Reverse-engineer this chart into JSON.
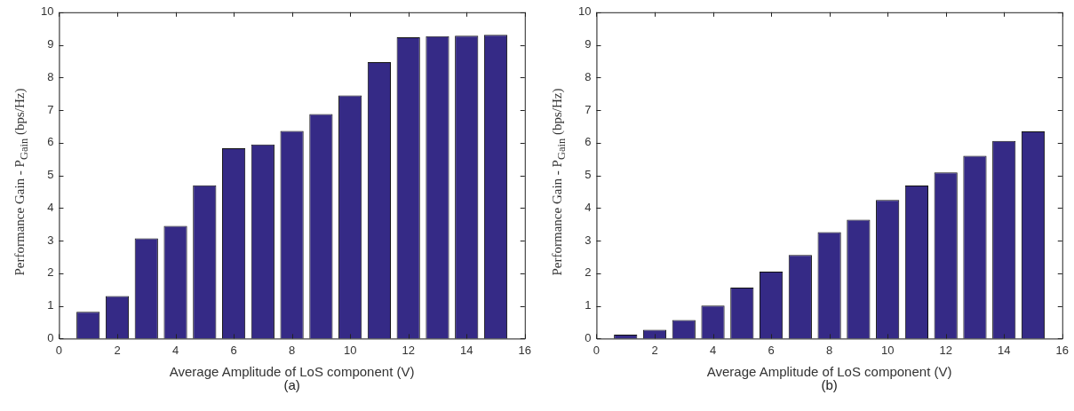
{
  "chart_data": [
    {
      "type": "bar",
      "xlabel": "Average Amplitude of LoS component (V)",
      "ylabel": "Performance Gain - P$_{Gain}$ (bps/Hz)",
      "annotations": [
        "(a)"
      ],
      "x": [
        1,
        2,
        3,
        4,
        5,
        6,
        7,
        8,
        9,
        10,
        11,
        12,
        13,
        14,
        15
      ],
      "values": [
        0.82,
        1.3,
        3.07,
        3.45,
        4.7,
        5.83,
        5.95,
        6.36,
        6.88,
        7.45,
        8.47,
        9.23,
        9.27,
        9.28,
        9.31
      ],
      "color": "#352a86",
      "xlim": [
        0,
        16
      ],
      "xticks": [
        0,
        2,
        4,
        6,
        8,
        10,
        12,
        14,
        16
      ],
      "ylim": [
        0,
        10
      ],
      "yticks": [
        0,
        1,
        2,
        3,
        4,
        5,
        6,
        7,
        8,
        9,
        10
      ],
      "grid": false,
      "legend": false
    },
    {
      "type": "bar",
      "xlabel": "Average Amplitude of LoS component (V)",
      "ylabel": "Performance Gain - P$_{Gain}$ (bps/Hz)",
      "annotations": [
        "(b)"
      ],
      "x": [
        1,
        2,
        3,
        4,
        5,
        6,
        7,
        8,
        9,
        10,
        11,
        12,
        13,
        14,
        15
      ],
      "values": [
        0.12,
        0.27,
        0.57,
        1.01,
        1.56,
        2.05,
        2.56,
        3.26,
        3.64,
        4.25,
        4.69,
        5.09,
        5.6,
        6.06,
        6.35
      ],
      "color": "#352a86",
      "xlim": [
        0,
        16
      ],
      "xticks": [
        0,
        2,
        4,
        6,
        8,
        10,
        12,
        14,
        16
      ],
      "ylim": [
        0,
        10
      ],
      "yticks": [
        0,
        1,
        2,
        3,
        4,
        5,
        6,
        7,
        8,
        9,
        10
      ],
      "grid": false,
      "legend": false
    }
  ]
}
